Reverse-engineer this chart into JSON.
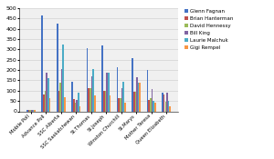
{
  "categories": [
    "Mobile Poll",
    "Advance Poll",
    "SSC Alberta",
    "SSC Saskatchewan",
    "St.Thomas",
    "St.Joseph",
    "Winston Churchill",
    "St.Marys",
    "Mother Teresa",
    "Queen Elizabeth"
  ],
  "series": {
    "Glenn Fagnan": [
      5,
      465,
      425,
      145,
      305,
      318,
      215,
      258,
      200,
      90
    ],
    "Brian Hanterman": [
      5,
      80,
      100,
      60,
      110,
      100,
      65,
      95,
      55,
      80
    ],
    "David Hennessy": [
      5,
      100,
      140,
      40,
      110,
      100,
      65,
      95,
      65,
      45
    ],
    "Bill King": [
      5,
      185,
      205,
      55,
      170,
      188,
      110,
      165,
      108,
      88
    ],
    "Laurie Malchuk": [
      5,
      160,
      325,
      90,
      205,
      188,
      145,
      140,
      50,
      50
    ],
    "Gigi Rempel": [
      5,
      65,
      70,
      25,
      75,
      75,
      40,
      140,
      40,
      25
    ]
  },
  "colors": {
    "Glenn Fagnan": "#4472C4",
    "Brian Hanterman": "#C0504D",
    "David Hennessy": "#9BBB59",
    "Bill King": "#8064A2",
    "Laurie Malchuk": "#4BACC6",
    "Gigi Rempel": "#F79646"
  },
  "ylim": [
    0,
    500
  ],
  "yticks": [
    0,
    50,
    100,
    150,
    200,
    250,
    300,
    350,
    400,
    450,
    500
  ],
  "figsize": [
    3.0,
    1.75
  ],
  "dpi": 100
}
